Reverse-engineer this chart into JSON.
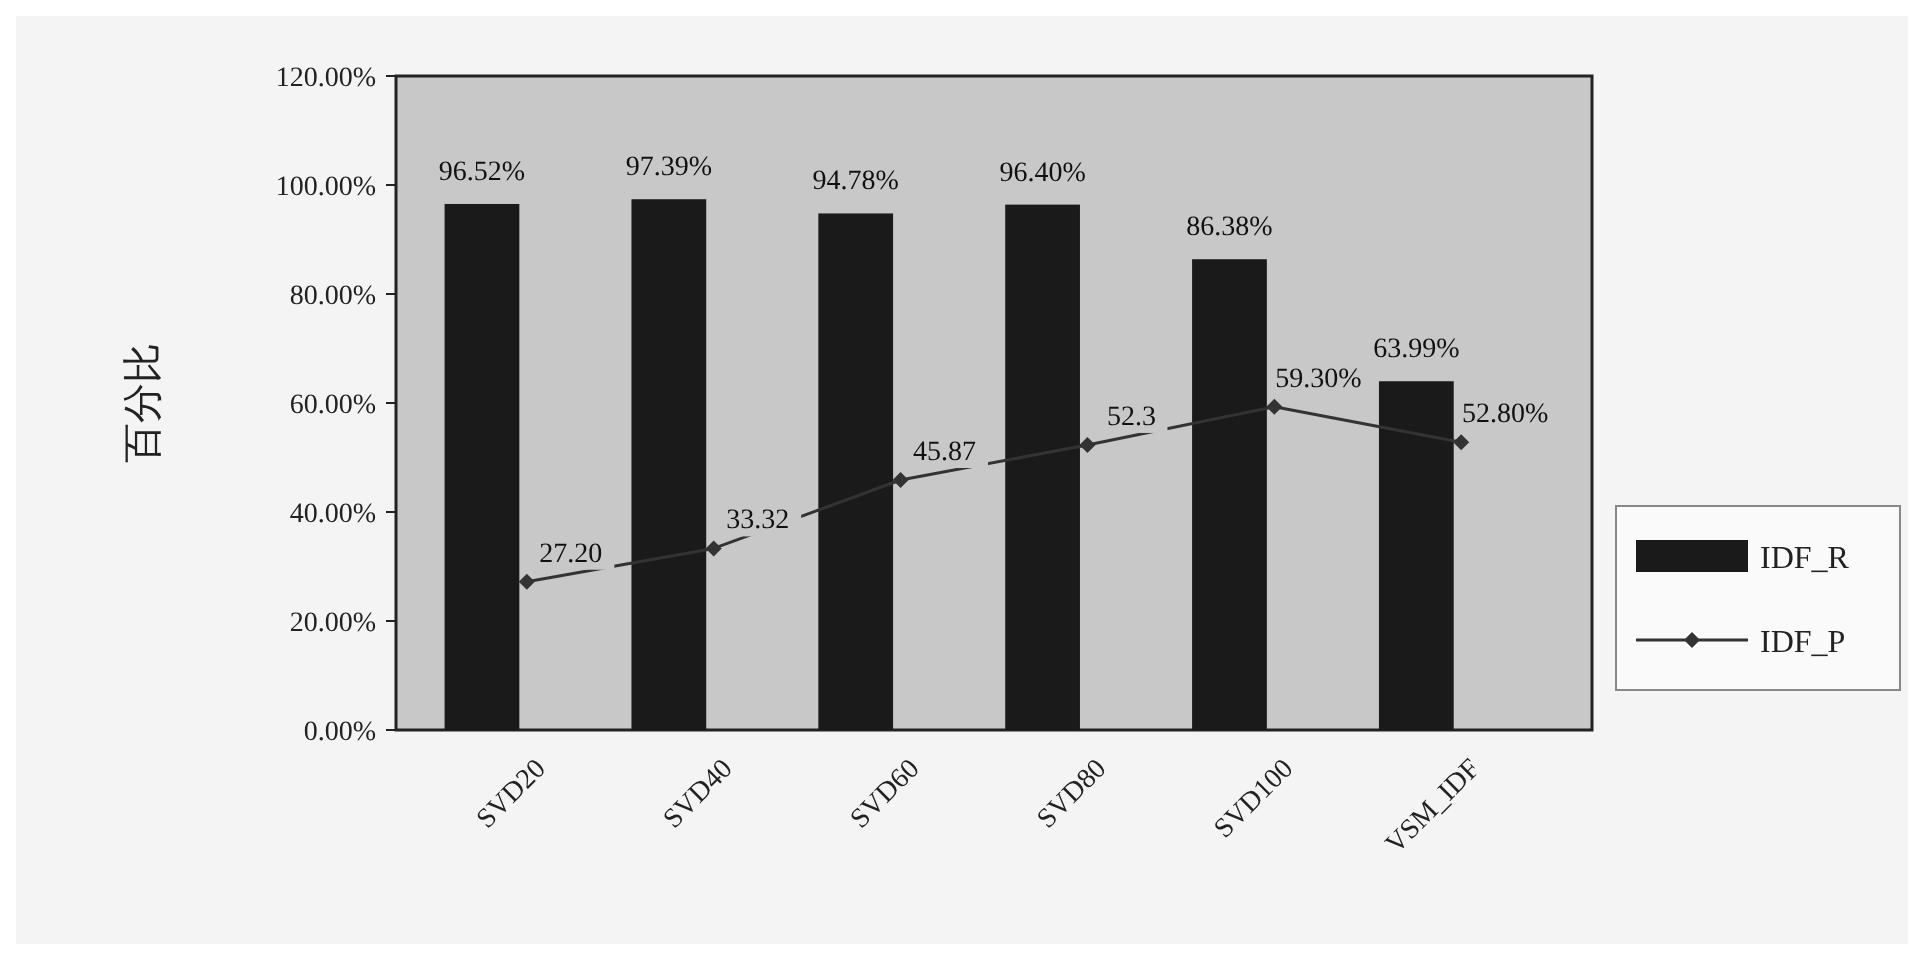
{
  "chart_data": {
    "type": "bar",
    "ylabel": "百分比",
    "categories": [
      "SVD20",
      "SVD40",
      "SVD60",
      "SVD80",
      "SVD100",
      "VSM_IDF"
    ],
    "series": [
      {
        "name": "IDF_R",
        "color": "#1a1a1a",
        "values": [
          96.52,
          97.39,
          94.78,
          96.4,
          86.38,
          63.99
        ],
        "value_labels": [
          "96.52%",
          "97.39%",
          "94.78%",
          "96.40%",
          "86.38%",
          "63.99%"
        ]
      },
      {
        "name": "IDF_P",
        "type": "line",
        "color": "#333333",
        "marker": "diamond",
        "values": [
          27.2,
          33.32,
          45.87,
          52.3,
          59.3,
          52.8
        ],
        "value_labels": [
          "27.20",
          "33.32",
          "45.87",
          "52.3",
          "59.30%",
          "52.80%"
        ]
      }
    ],
    "ylim": [
      0,
      120
    ],
    "yticks": [
      {
        "value": 0,
        "label": "0.00%"
      },
      {
        "value": 20,
        "label": "20.00%"
      },
      {
        "value": 40,
        "label": "40.00%"
      },
      {
        "value": 60,
        "label": "60.00%"
      },
      {
        "value": 80,
        "label": "80.00%"
      },
      {
        "value": 100,
        "label": "100.00%"
      },
      {
        "value": 120,
        "label": "120.00%"
      }
    ],
    "legend": "right"
  }
}
